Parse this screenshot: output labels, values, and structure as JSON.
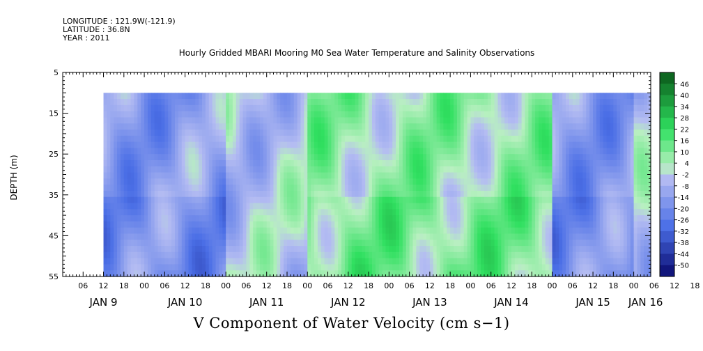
{
  "header": {
    "longitude": "LONGITUDE : 121.9W(-121.9)",
    "latitude": "LATITUDE : 36.8N",
    "year": "YEAR : 2011"
  },
  "plot_title": "Hourly Gridded MBARI Mooring M0 Sea Water Temperature and Salinity Observations",
  "figure_title": "V Component of Water Velocity (cm s−1)",
  "colors": {
    "neg_deep": "#0a0a6e",
    "neg_mid": "#4a6ee6",
    "neg_light": "#b4bcf2",
    "pos_light": "#b8f0c0",
    "pos_mid": "#30e060",
    "pos_deep": "#0a5a1a"
  },
  "chart_data": {
    "type": "heatmap",
    "title": "Hourly Gridded MBARI Mooring M0 Sea Water Temperature and Salinity Observations",
    "xlabel": "",
    "ylabel": "DEPTH (m)",
    "y_ticks": [
      5,
      15,
      25,
      35,
      45,
      55
    ],
    "y_range": [
      5,
      55
    ],
    "y_inverted": true,
    "x_hour_ticks": [
      "06",
      "12",
      "18",
      "00",
      "06",
      "12",
      "18",
      "00",
      "06",
      "12",
      "18",
      "00",
      "06",
      "12",
      "18",
      "00",
      "06",
      "12",
      "18",
      "00",
      "06",
      "12",
      "18",
      "00",
      "06",
      "12",
      "18",
      "00",
      "06",
      "12",
      "18",
      "00"
    ],
    "x_day_labels": [
      "JAN  9",
      "JAN 10",
      "JAN 11",
      "JAN 12",
      "JAN 13",
      "JAN 14",
      "JAN 15",
      "JAN 16"
    ],
    "x_range": [
      "2011-01-09T00:00",
      "2011-01-16T05:00"
    ],
    "data_x_range": [
      "2011-01-09T12:00",
      "2011-01-16T05:00"
    ],
    "data_y_range": [
      10,
      55
    ],
    "colorbar": {
      "levels": [
        46,
        40,
        34,
        28,
        22,
        16,
        10,
        4,
        -2,
        -8,
        -14,
        -20,
        -26,
        -32,
        -38,
        -44,
        -50
      ],
      "range": [
        -50,
        50
      ]
    },
    "field_summary": [
      {
        "day": "JAN 9",
        "dominant_sign": "negative",
        "approx_min": -20
      },
      {
        "day": "JAN 10",
        "dominant_sign": "negative",
        "approx_min": -14
      },
      {
        "day": "JAN 11",
        "dominant_sign": "mixed",
        "approx_min": -20
      },
      {
        "day": "JAN 12",
        "dominant_sign": "positive",
        "approx_max": 16
      },
      {
        "day": "JAN 13",
        "dominant_sign": "positive",
        "approx_max": 22
      },
      {
        "day": "JAN 14",
        "dominant_sign": "positive",
        "approx_max": 16
      },
      {
        "day": "JAN 15",
        "dominant_sign": "negative",
        "approx_min": -14
      },
      {
        "day": "JAN 16",
        "dominant_sign": "mixed",
        "approx_min": -8
      }
    ]
  }
}
